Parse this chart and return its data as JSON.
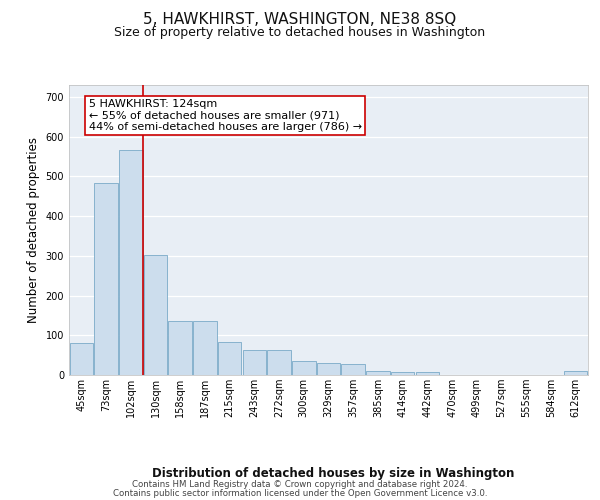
{
  "title1": "5, HAWKHIRST, WASHINGTON, NE38 8SQ",
  "title2": "Size of property relative to detached houses in Washington",
  "xlabel": "Distribution of detached houses by size in Washington",
  "ylabel": "Number of detached properties",
  "bar_labels": [
    "45sqm",
    "73sqm",
    "102sqm",
    "130sqm",
    "158sqm",
    "187sqm",
    "215sqm",
    "243sqm",
    "272sqm",
    "300sqm",
    "329sqm",
    "357sqm",
    "385sqm",
    "414sqm",
    "442sqm",
    "470sqm",
    "499sqm",
    "527sqm",
    "555sqm",
    "584sqm",
    "612sqm"
  ],
  "bar_values": [
    80,
    483,
    567,
    303,
    135,
    135,
    83,
    62,
    62,
    35,
    30,
    27,
    10,
    8,
    8,
    0,
    0,
    0,
    0,
    0,
    11
  ],
  "bar_color": "#ccdded",
  "bar_edge_color": "#7aaac8",
  "vline_color": "#cc0000",
  "annotation_text": "5 HAWKHIRST: 124sqm\n← 55% of detached houses are smaller (971)\n44% of semi-detached houses are larger (786) →",
  "annotation_box_color": "#ffffff",
  "annotation_box_edge": "#cc0000",
  "ylim": [
    0,
    730
  ],
  "yticks": [
    0,
    100,
    200,
    300,
    400,
    500,
    600,
    700
  ],
  "background_color": "#e8eef5",
  "footer1": "Contains HM Land Registry data © Crown copyright and database right 2024.",
  "footer2": "Contains public sector information licensed under the Open Government Licence v3.0.",
  "title1_fontsize": 11,
  "title2_fontsize": 9,
  "axis_label_fontsize": 8.5,
  "tick_fontsize": 7,
  "annotation_fontsize": 8
}
